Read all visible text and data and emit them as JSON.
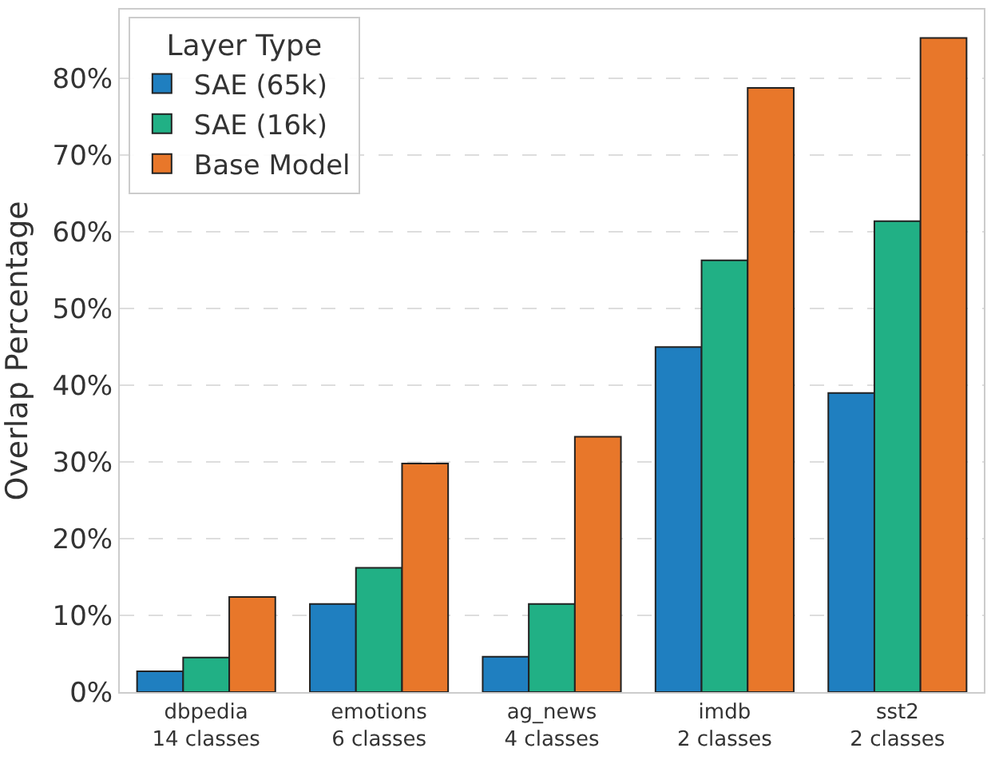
{
  "chart_data": {
    "type": "bar",
    "ylabel": "Overlap Percentage",
    "legend_title": "Layer Type",
    "legend": "top left",
    "grid": "y",
    "categories": [
      "dbpedia\n14 classes",
      "emotions\n6 classes",
      "ag_news\n4 classes",
      "imdb\n2 classes",
      "sst2\n2 classes"
    ],
    "series": [
      {
        "name": "SAE (65k)",
        "color": "#1f7fc0",
        "values": [
          2.7,
          11.5,
          4.6,
          45.0,
          39.0
        ]
      },
      {
        "name": "SAE (16k)",
        "color": "#21b085",
        "values": [
          4.5,
          16.2,
          11.5,
          56.3,
          61.4
        ]
      },
      {
        "name": "Base Model",
        "color": "#e8772a",
        "values": [
          12.4,
          29.8,
          33.3,
          78.8,
          85.3
        ]
      }
    ],
    "ylim": [
      0,
      89
    ],
    "yticks": [
      {
        "value": 0,
        "label": "0%"
      },
      {
        "value": 10,
        "label": "10%"
      },
      {
        "value": 20,
        "label": "20%"
      },
      {
        "value": 30,
        "label": "30%"
      },
      {
        "value": 40,
        "label": "40%"
      },
      {
        "value": 50,
        "label": "50%"
      },
      {
        "value": 60,
        "label": "60%"
      },
      {
        "value": 70,
        "label": "70%"
      },
      {
        "value": 80,
        "label": "80%"
      }
    ]
  }
}
